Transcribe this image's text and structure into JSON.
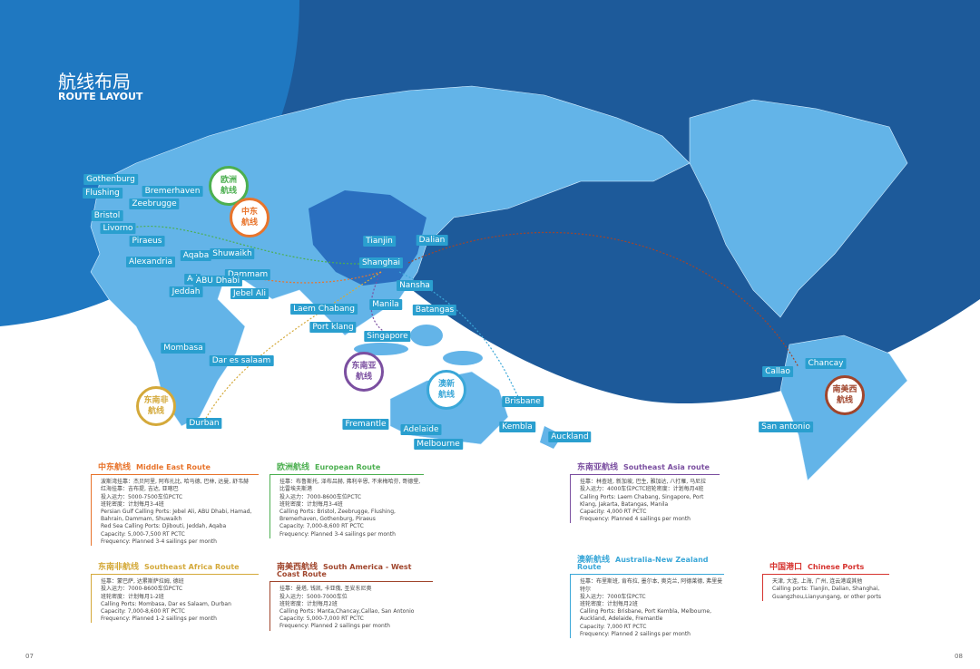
{
  "header": {
    "title": "航线布局",
    "subtitle": "ROUTE LAYOUT"
  },
  "ports": [
    "Gothenburg",
    "Flushing",
    "Bremerhaven",
    "Zeebrugge",
    "Bristol",
    "Livorno",
    "Piraeus",
    "Alexandria",
    "Aqaba",
    "Shuwaikh",
    "Dammam",
    "Ad",
    "ABU Dhabi",
    "Jeddah",
    "Jebel Ali",
    "Mombasa",
    "Dar es salaam",
    "Durban",
    "Tianjin",
    "Dalian",
    "Shanghai",
    "Nansha",
    "Laem Chabang",
    "Manila",
    "Batangas",
    "Port klang",
    "Singapore",
    "Brisbane",
    "Fremantle",
    "Adelaide",
    "Melbourne",
    "Kembla",
    "Auckland",
    "Callao",
    "Chancay",
    "San antonio"
  ],
  "pins": [
    {
      "lines": [
        "欧洲",
        "航线"
      ],
      "color": "#4caf50"
    },
    {
      "lines": [
        "中东",
        "航线"
      ],
      "color": "#e8742c"
    },
    {
      "lines": [
        "东南亚",
        "航线"
      ],
      "color": "#7b4fa0"
    },
    {
      "lines": [
        "东南非",
        "航线"
      ],
      "color": "#d4a93a"
    },
    {
      "lines": [
        "澳新",
        "航线"
      ],
      "color": "#3aa7d8"
    },
    {
      "lines": [
        "南美西",
        "航线"
      ],
      "color": "#a0452c"
    }
  ],
  "routes": [
    {
      "title_cn": "中东航线",
      "title_en": "Middle East Route",
      "color": "#e8742c",
      "lines": [
        "波斯湾挂靠：杰贝阿里, 阿布扎比, 哈马德, 巴林, 达曼, 舒韦赫",
        "红海挂靠：吉布提, 吉达, 亚喀巴",
        "投入运力：5000-7500车位PCTC",
        "班轮密度：计划每月3-4班",
        "Persian Gulf Calling Ports: Jebel Ali, ABU Dhabi, Hamad, Bahrain, Dammam, Shuwaikh",
        "Red Sea Calling Ports: Djibouti, Jeddah, Aqaba",
        "Capacity: 5,000-7,500 RT PCTC",
        "Frequency: Planned 3-4 sailings per month"
      ]
    },
    {
      "title_cn": "欧洲航线",
      "title_en": "European Route",
      "color": "#4caf50",
      "lines": [
        "挂靠：布鲁斯托, 泽布吕赫, 弗利辛恩, 不来梅哈芬, 哥德堡, 比雷埃夫斯港",
        "投入运力：7000-8600车位PCTC",
        "班轮密度：计划每月3-4班",
        "Calling Ports: Bristol, Zeebrugge, Flushing, Bremerhaven, Gothenburg, Piraeus",
        "Capacity: 7,000-8,600 RT PCTC",
        "Frequency: Planned 3-4 sailings per month"
      ]
    },
    {
      "title_cn": "东南亚航线",
      "title_en": "Southeast Asia route",
      "color": "#7b4fa0",
      "lines": [
        "挂靠：林查班, 新加坡, 巴生, 雅加达, 八打雁, 马尼拉",
        "投入运力：4000车位PCTC班轮密度：计划每月4班",
        "Calling Ports: Laem Chabang, Singapore, Port Klang, Jakarta, Batangas, Manila",
        "Capacity: 4,000 RT PCTC",
        "Frequency: Planned 4 sailings per month"
      ]
    },
    {
      "title_cn": "东南非航线",
      "title_en": "Southeast Africa Route",
      "color": "#d4a93a",
      "lines": [
        "挂靠：蒙巴萨, 达累斯萨拉姆, 德班",
        "投入运力：7000-8600车位PCTC",
        "班轮密度：计划每月1-2班",
        "Calling Ports: Mombasa, Dar es Salaam, Durban",
        "Capacity: 7,000-8,600 RT PCTC",
        "Frequency: Planned 1-2 sailings per month"
      ]
    },
    {
      "title_cn": "南美西航线",
      "title_en": "South America - West Coast Route",
      "color": "#a0452c",
      "lines": [
        "挂靠：曼塔, 钱凯, 卡亚俄, 圣安东尼奥",
        "投入运力：5000-7000车位",
        "班轮密度：计划每月2班",
        "Calling Ports: Manta,Chancay,Callao, San Antonio",
        "Capacity: 5,000-7,000 RT PCTC",
        "Frequency: Planned 2 sailings per month"
      ]
    },
    {
      "title_cn": "澳新航线",
      "title_en": "Australia-New Zealand Route",
      "color": "#3aa7d8",
      "lines": [
        "挂靠：布里斯班, 肯布拉, 墨尔本, 奥克兰, 阿德莱德, 弗里曼特尔",
        "投入运力：7000车位PCTC",
        "班轮密度：计划每月2班",
        "Calling Ports: Brisbane, Port Kembla, Melbourne, Auckland, Adelaide, Fremantle",
        "Capacity: 7,000 RT PCTC",
        "Frequency: Planned 2 sailings per month"
      ]
    },
    {
      "title_cn": "中国港口",
      "title_en": "Chinese Ports",
      "color": "#d6332f",
      "lines": [
        "天津, 大连, 上海, 广州, 连云港或其他",
        "Calling ports: Tianjin, Dalian, Shanghai, Guangzhou,Lianyungang, or other ports"
      ]
    }
  ],
  "page_numbers": [
    "07",
    "08"
  ]
}
